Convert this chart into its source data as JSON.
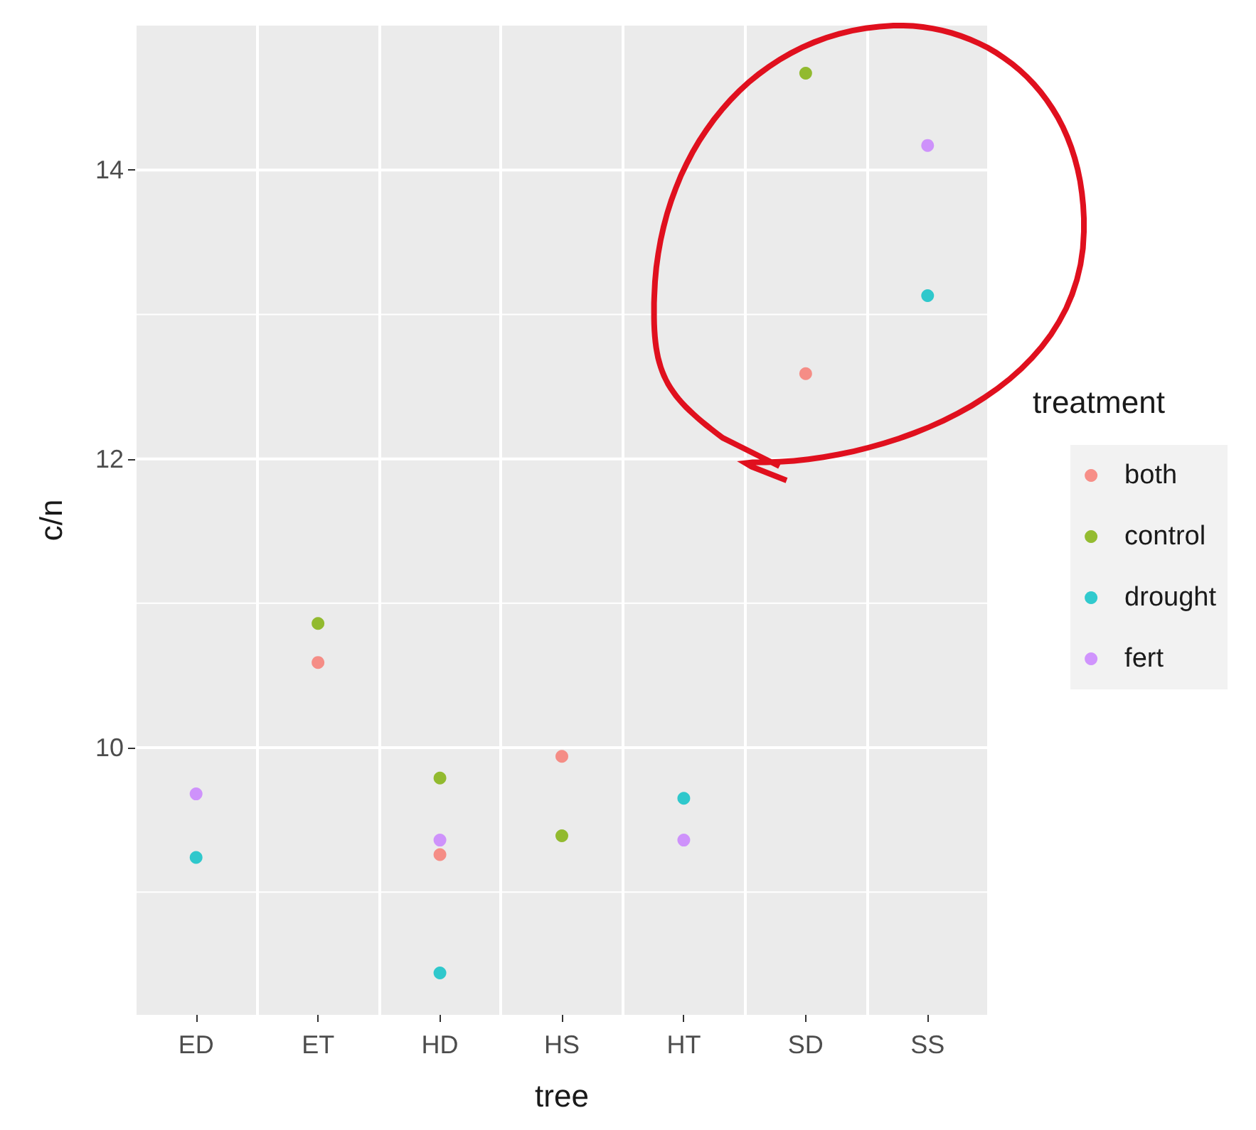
{
  "chart_data": {
    "type": "scatter",
    "xlabel": "tree",
    "ylabel": "c/n",
    "legend_title": "treatment",
    "categories": [
      "ED",
      "ET",
      "HD",
      "HS",
      "HT",
      "SD",
      "SS"
    ],
    "series": [
      {
        "name": "both",
        "color": "#f8766d",
        "x": [
          "ET",
          "HD",
          "HS",
          "SD"
        ],
        "values": [
          10.59,
          9.26,
          9.94,
          12.59
        ]
      },
      {
        "name": "control",
        "color": "#7cae00",
        "x": [
          "ET",
          "HD",
          "HS",
          "SD"
        ],
        "values": [
          10.86,
          9.79,
          9.39,
          14.67
        ]
      },
      {
        "name": "drought",
        "color": "#00bfc4",
        "x": [
          "ED",
          "HD",
          "HT",
          "SS"
        ],
        "values": [
          9.24,
          8.44,
          9.65,
          13.13
        ]
      },
      {
        "name": "fert",
        "color": "#c77cff",
        "x": [
          "ED",
          "HD",
          "HT",
          "SS"
        ],
        "values": [
          9.68,
          9.36,
          9.36,
          14.17
        ]
      }
    ],
    "ylim": [
      8.15,
      15.0
    ],
    "yticks": [
      {
        "value": 9,
        "label": null
      },
      10,
      {
        "value": 11,
        "label": null
      },
      12,
      {
        "value": 13,
        "label": null
      },
      14
    ],
    "grid": true,
    "legend": "right",
    "marker": "circle"
  }
}
